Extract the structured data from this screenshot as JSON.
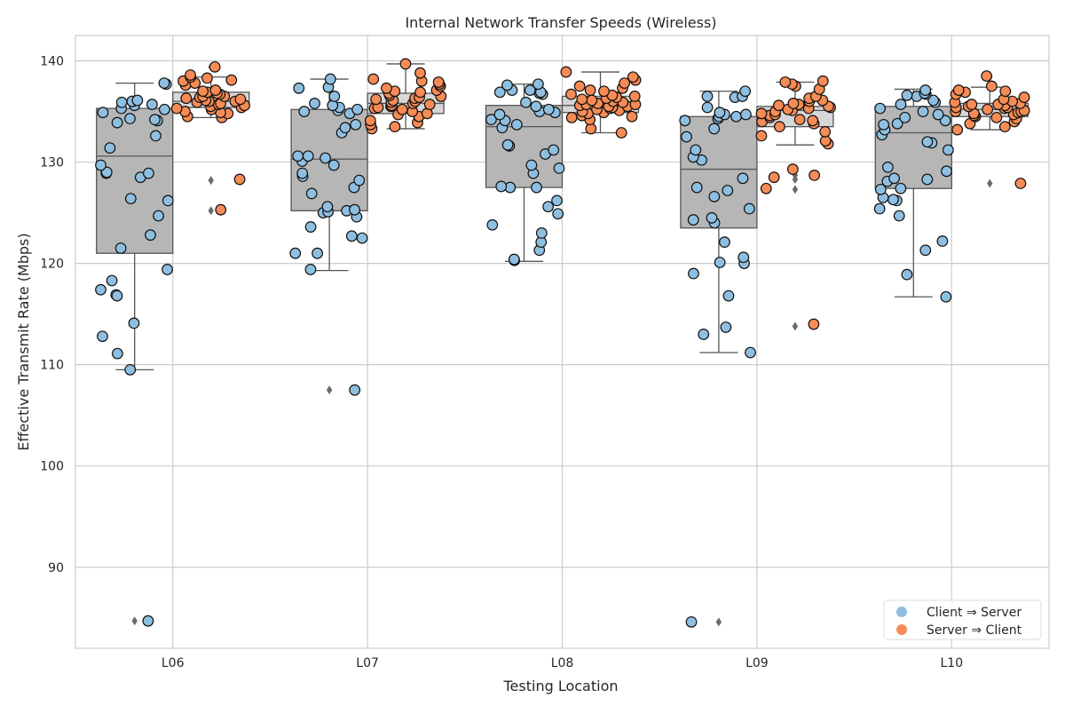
{
  "chart_data": {
    "type": "box",
    "title": "Internal Network Transfer Speeds (Wireless)",
    "xlabel": "Testing Location",
    "ylabel": "Effective Transmit Rate (Mbps)",
    "ylim": [
      82,
      142.5
    ],
    "yticks": [
      90,
      100,
      110,
      120,
      130,
      140
    ],
    "categories": [
      "L06",
      "L07",
      "L08",
      "L09",
      "L10"
    ],
    "grid": true,
    "legend_position": "bottom-right",
    "series": [
      {
        "name": "Client ⇒ Server",
        "color": "#8fbfe0",
        "box_color": "#b6b6b6",
        "stats": [
          {
            "q1": 121.0,
            "median": 130.6,
            "q3": 135.3,
            "whisker_low": 109.5,
            "whisker_high": 137.8,
            "outliers": [
              84.7
            ]
          },
          {
            "q1": 125.2,
            "median": 130.3,
            "q3": 135.2,
            "whisker_low": 119.3,
            "whisker_high": 138.2,
            "outliers": [
              107.5
            ]
          },
          {
            "q1": 127.5,
            "median": 133.5,
            "q3": 135.6,
            "whisker_low": 120.2,
            "whisker_high": 137.7,
            "outliers": []
          },
          {
            "q1": 123.5,
            "median": 129.3,
            "q3": 134.5,
            "whisker_low": 111.2,
            "whisker_high": 137.0,
            "outliers": [
              84.6
            ]
          },
          {
            "q1": 127.4,
            "median": 132.9,
            "q3": 135.5,
            "whisker_low": 116.7,
            "whisker_high": 137.2,
            "outliers": []
          }
        ],
        "points": [
          [
            109.5,
            114.1,
            116.9,
            117.4,
            118.3,
            112.8,
            119.4,
            116.8,
            111.1,
            121.5,
            122.8,
            124.7,
            126.2,
            126.4,
            128.5,
            128.9,
            128.9,
            129.0,
            129.7,
            131.4,
            132.6,
            133.9,
            134.1,
            134.2,
            134.3,
            134.9,
            135.2,
            135.3,
            135.6,
            135.7,
            135.9,
            136.0,
            136.0,
            136.1,
            137.7,
            137.8,
            84.7
          ],
          [
            119.4,
            121.0,
            121.0,
            122.5,
            122.7,
            123.6,
            124.6,
            125.0,
            125.1,
            125.2,
            125.3,
            125.6,
            126.9,
            127.5,
            128.2,
            128.6,
            128.9,
            129.7,
            130.1,
            130.4,
            130.6,
            130.6,
            132.9,
            133.4,
            133.7,
            134.8,
            135.0,
            135.1,
            135.2,
            135.4,
            135.6,
            135.8,
            136.5,
            137.3,
            137.4,
            138.2,
            107.5
          ],
          [
            120.3,
            120.4,
            121.3,
            122.1,
            123.0,
            123.8,
            124.9,
            125.6,
            126.2,
            127.5,
            127.5,
            127.6,
            128.9,
            129.4,
            129.7,
            130.8,
            131.2,
            131.6,
            131.7,
            133.4,
            133.7,
            134.1,
            134.2,
            134.7,
            134.9,
            135.0,
            135.2,
            135.5,
            135.9,
            136.7,
            136.8,
            136.9,
            136.9,
            137.1,
            137.1,
            137.6,
            137.7
          ],
          [
            111.2,
            113.0,
            113.7,
            116.8,
            119.0,
            120.0,
            120.1,
            120.6,
            122.1,
            124.0,
            124.3,
            124.5,
            125.4,
            126.6,
            127.2,
            127.5,
            128.4,
            130.2,
            130.5,
            131.2,
            132.5,
            133.3,
            134.1,
            134.3,
            134.5,
            134.5,
            134.7,
            134.7,
            134.9,
            135.4,
            136.4,
            136.5,
            136.5,
            137.0,
            84.6
          ],
          [
            116.7,
            118.9,
            121.3,
            122.2,
            124.7,
            125.4,
            126.2,
            126.3,
            126.5,
            127.3,
            127.4,
            128.1,
            128.3,
            128.4,
            129.1,
            129.5,
            131.2,
            131.9,
            132.0,
            132.7,
            133.2,
            133.7,
            133.8,
            134.1,
            134.4,
            134.7,
            135.0,
            135.3,
            135.7,
            135.9,
            136.1,
            136.5,
            136.6,
            136.7,
            136.8,
            137.1
          ]
        ]
      },
      {
        "name": "Server ⇒ Client",
        "color": "#f58b55",
        "box_color": "#d7d7d7",
        "stats": [
          {
            "q1": 135.4,
            "median": 136.0,
            "q3": 136.9,
            "whisker_low": 134.4,
            "whisker_high": 138.4,
            "outliers": [
              139.4,
              128.2,
              125.2
            ]
          },
          {
            "q1": 134.8,
            "median": 135.8,
            "q3": 136.8,
            "whisker_low": 133.3,
            "whisker_high": 139.7,
            "outliers": []
          },
          {
            "q1": 134.9,
            "median": 135.6,
            "q3": 136.5,
            "whisker_low": 132.9,
            "whisker_high": 138.9,
            "outliers": []
          },
          {
            "q1": 133.5,
            "median": 135.1,
            "q3": 135.5,
            "whisker_low": 131.7,
            "whisker_high": 137.9,
            "outliers": [
              129.3,
              128.7,
              128.3,
              127.3,
              113.8
            ]
          },
          {
            "q1": 134.5,
            "median": 135.2,
            "q3": 135.8,
            "whisker_low": 133.2,
            "whisker_high": 137.4,
            "outliers": [
              138.4,
              127.9
            ]
          }
        ],
        "points": [
          [
            125.3,
            128.3,
            134.4,
            134.5,
            134.8,
            134.9,
            135.0,
            135.2,
            135.3,
            135.4,
            135.5,
            135.6,
            135.7,
            135.8,
            135.9,
            136.0,
            136.0,
            136.1,
            136.2,
            136.3,
            136.4,
            136.5,
            136.5,
            136.7,
            136.8,
            136.9,
            137.0,
            137.1,
            137.6,
            137.8,
            138.0,
            138.1,
            138.3,
            138.4,
            138.6,
            139.4
          ],
          [
            133.3,
            133.5,
            133.7,
            133.9,
            134.1,
            134.5,
            134.7,
            134.8,
            135.0,
            135.2,
            135.3,
            135.4,
            135.5,
            135.6,
            135.7,
            135.8,
            135.9,
            136.0,
            136.1,
            136.2,
            136.3,
            136.4,
            136.5,
            136.6,
            136.8,
            136.9,
            137.0,
            137.1,
            137.3,
            137.5,
            137.7,
            137.9,
            138.0,
            138.2,
            138.8,
            139.7
          ],
          [
            132.9,
            133.3,
            134.2,
            134.4,
            134.5,
            134.6,
            134.8,
            134.9,
            135.0,
            135.1,
            135.2,
            135.3,
            135.4,
            135.5,
            135.5,
            135.6,
            135.7,
            135.7,
            135.8,
            135.9,
            136.0,
            136.1,
            136.2,
            136.3,
            136.4,
            136.5,
            136.6,
            136.7,
            137.0,
            137.1,
            137.3,
            137.5,
            137.8,
            138.1,
            138.4,
            138.9
          ],
          [
            114.0,
            127.4,
            128.5,
            128.7,
            129.3,
            131.8,
            132.1,
            132.6,
            133.0,
            133.5,
            133.8,
            134.0,
            134.1,
            134.2,
            134.4,
            134.6,
            134.7,
            134.8,
            135.0,
            135.1,
            135.2,
            135.3,
            135.4,
            135.5,
            135.6,
            135.7,
            135.8,
            136.0,
            136.1,
            136.3,
            136.5,
            137.2,
            137.5,
            137.7,
            137.9,
            138.0
          ],
          [
            127.9,
            133.2,
            133.5,
            133.8,
            134.0,
            134.3,
            134.4,
            134.5,
            134.6,
            134.7,
            134.8,
            134.9,
            135.0,
            135.0,
            135.1,
            135.2,
            135.3,
            135.4,
            135.4,
            135.5,
            135.6,
            135.7,
            135.7,
            135.8,
            135.9,
            136.0,
            136.2,
            136.4,
            136.7,
            136.9,
            137.0,
            137.1,
            137.5,
            138.5
          ]
        ]
      }
    ]
  }
}
